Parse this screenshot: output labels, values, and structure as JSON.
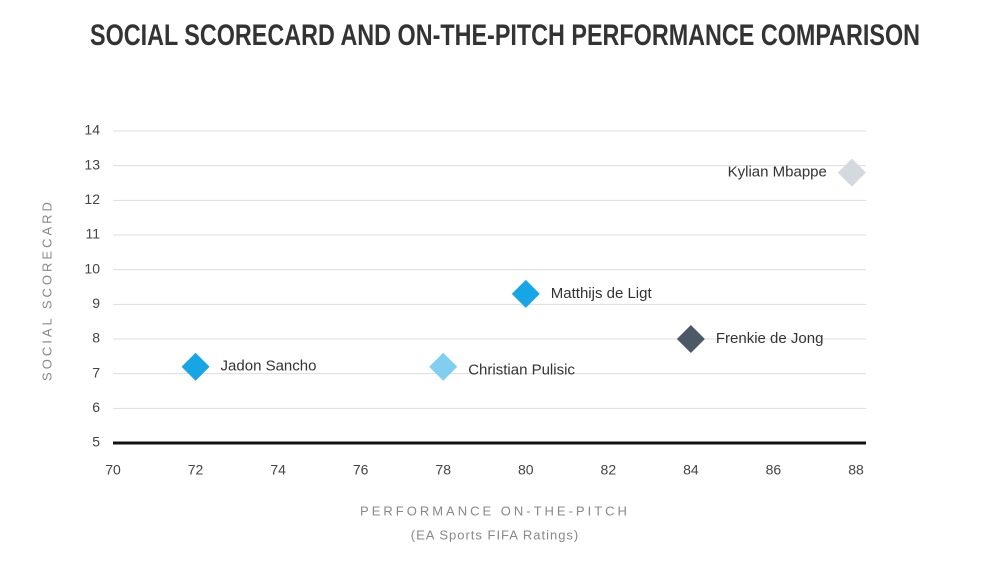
{
  "chart_data": {
    "type": "scatter",
    "title": "SOCIAL SCORECARD AND ON-THE-PITCH PERFORMANCE COMPARISON",
    "y_label": "SOCIAL SCORECARD",
    "x_label": "PERFORMANCE ON-THE-PITCH",
    "x_sublabel": "(EA Sports FIFA Ratings)",
    "points": [
      {
        "name": "Jadon Sancho",
        "x": 72,
        "y": 7.2,
        "color": "#16a6e6"
      },
      {
        "name": "Christian Pulisic",
        "x": 78,
        "y": 7.2,
        "color": "#80cff0"
      },
      {
        "name": "Matthijs de Ligt",
        "x": 80,
        "y": 9.3,
        "color": "#16a6e6"
      },
      {
        "name": "Frenkie de Jong",
        "x": 84,
        "y": 8,
        "color": "#4b5a66"
      },
      {
        "name": "Kylian Mbappe",
        "x": 87.9,
        "y": 12.8,
        "color": "#d3d9de"
      }
    ],
    "xlim": [
      70,
      88
    ],
    "xticks": [
      70,
      72,
      74,
      76,
      78,
      80,
      82,
      84,
      86,
      88
    ],
    "ylim": [
      5,
      14
    ],
    "yticks": [
      5,
      6,
      7,
      8,
      9,
      10,
      11,
      12,
      13,
      14
    ],
    "grid": true
  }
}
